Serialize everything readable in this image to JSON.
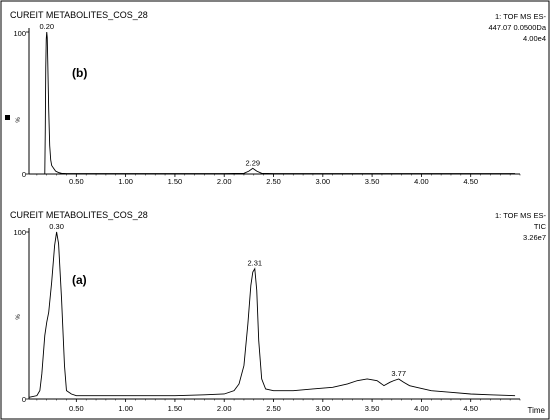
{
  "chart_data": [
    {
      "type": "line",
      "panel_label": "(b)",
      "sample_name": "CUREIT METABOLITES_COS_28",
      "info_lines": [
        "1: TOF MS ES-",
        "447.07 0.0500Da",
        "4.00e4"
      ],
      "y_tick_top": "100",
      "y_tick_bottom": "0",
      "y_axis_label": "%",
      "x_tick_labels": [
        "0.50",
        "1.00",
        "1.50",
        "2.00",
        "2.50",
        "3.00",
        "3.50",
        "4.00",
        "4.50"
      ],
      "x_ticks": [
        0.5,
        1.0,
        1.5,
        2.0,
        2.5,
        3.0,
        3.5,
        4.0,
        4.5
      ],
      "xlim": [
        0.02,
        5.0
      ],
      "ylim": [
        0,
        100
      ],
      "peaks": [
        {
          "x": 0.2,
          "label": "0.20",
          "value": 100
        },
        {
          "x": 2.29,
          "label": "2.29",
          "value": 4
        }
      ],
      "x": [
        0.18,
        0.185,
        0.19,
        0.195,
        0.2,
        0.205,
        0.21,
        0.22,
        0.23,
        0.24,
        0.25,
        0.27,
        0.29,
        0.32,
        0.35,
        0.4,
        0.5,
        1.0,
        1.5,
        2.0,
        2.2,
        2.25,
        2.29,
        2.33,
        2.38,
        2.5,
        3.0,
        3.5,
        4.0,
        4.5,
        4.95
      ],
      "y": [
        0,
        30,
        75,
        95,
        100,
        96,
        80,
        45,
        20,
        10,
        6,
        4,
        2,
        1,
        0.5,
        0.3,
        0.3,
        0.3,
        0.3,
        0.3,
        0.5,
        2,
        4,
        2,
        0.5,
        0.3,
        0.3,
        0.3,
        0.3,
        0.3,
        0.3
      ]
    },
    {
      "type": "line",
      "panel_label": "(a)",
      "sample_name": "CUREIT METABOLITES_COS_28",
      "info_lines": [
        "1: TOF MS ES-",
        "TIC",
        "3.26e7"
      ],
      "y_tick_top": "100",
      "y_tick_bottom": "0",
      "y_axis_label": "%",
      "x_tick_labels": [
        "0.50",
        "1.00",
        "1.50",
        "2.00",
        "2.50",
        "3.00",
        "3.50",
        "4.00",
        "4.50"
      ],
      "x_ticks": [
        0.5,
        1.0,
        1.5,
        2.0,
        2.5,
        3.0,
        3.5,
        4.0,
        4.5
      ],
      "xlabel": "Time",
      "xlim": [
        0.02,
        5.0
      ],
      "ylim": [
        0,
        100
      ],
      "peaks": [
        {
          "x": 0.3,
          "label": "0.30",
          "value": 100
        },
        {
          "x": 2.31,
          "label": "2.31",
          "value": 78
        },
        {
          "x": 3.77,
          "label": "3.77",
          "value": 12
        }
      ],
      "x": [
        0.02,
        0.1,
        0.13,
        0.15,
        0.18,
        0.2,
        0.22,
        0.25,
        0.28,
        0.3,
        0.32,
        0.35,
        0.38,
        0.4,
        0.45,
        0.5,
        0.6,
        0.8,
        1.0,
        1.2,
        1.5,
        1.8,
        2.0,
        2.1,
        2.15,
        2.2,
        2.24,
        2.27,
        2.29,
        2.31,
        2.33,
        2.35,
        2.38,
        2.42,
        2.5,
        2.7,
        2.9,
        3.1,
        3.25,
        3.35,
        3.45,
        3.55,
        3.62,
        3.68,
        3.72,
        3.77,
        3.82,
        3.88,
        3.95,
        4.1,
        4.3,
        4.5,
        4.7,
        4.95
      ],
      "y": [
        1,
        2,
        5,
        15,
        38,
        46,
        52,
        70,
        92,
        100,
        93,
        60,
        20,
        5,
        3,
        2,
        2,
        2,
        2,
        2,
        2,
        2.5,
        3,
        5,
        9,
        20,
        45,
        68,
        76,
        78,
        65,
        35,
        12,
        6,
        5,
        5,
        6,
        7,
        9,
        11,
        12,
        11,
        8,
        10,
        11,
        12,
        10,
        8,
        7,
        5,
        4,
        3,
        2.5,
        2
      ]
    }
  ]
}
